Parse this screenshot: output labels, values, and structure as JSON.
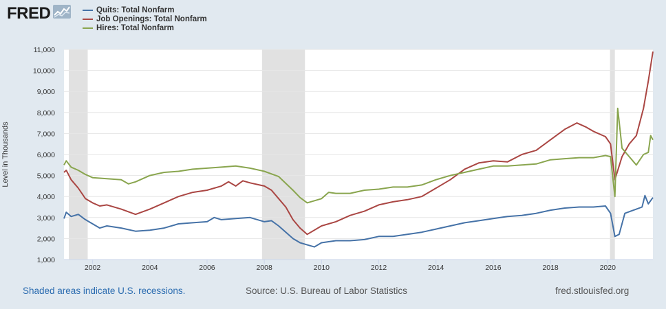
{
  "logo": {
    "text": "FRED"
  },
  "footer": {
    "recession_note": "Shaded areas indicate U.S. recessions.",
    "source": "Source: U.S. Bureau of Labor Statistics",
    "site": "fred.stlouisfed.org"
  },
  "chart_data": {
    "type": "line",
    "title": "",
    "xlabel": "",
    "ylabel": "Level in Thousands",
    "xlim": [
      2001.0,
      2021.58
    ],
    "ylim": [
      1000,
      11000
    ],
    "x_ticks": [
      2002,
      2004,
      2006,
      2008,
      2010,
      2012,
      2014,
      2016,
      2018,
      2020
    ],
    "y_ticks": [
      1000,
      2000,
      3000,
      4000,
      5000,
      6000,
      7000,
      8000,
      9000,
      10000,
      11000
    ],
    "y_tick_labels": [
      "1,000",
      "2,000",
      "3,000",
      "4,000",
      "5,000",
      "6,000",
      "7,000",
      "8,000",
      "9,000",
      "10,000",
      "11,000"
    ],
    "grid": true,
    "legend_position": "top-left",
    "recessions": [
      [
        2001.17,
        2001.83
      ],
      [
        2007.92,
        2009.42
      ],
      [
        2020.08,
        2020.25
      ]
    ],
    "series": [
      {
        "name": "Quits: Total Nonfarm",
        "color": "#4572a7",
        "points": [
          [
            2001.0,
            2950
          ],
          [
            2001.08,
            3250
          ],
          [
            2001.25,
            3050
          ],
          [
            2001.5,
            3150
          ],
          [
            2001.75,
            2900
          ],
          [
            2002.0,
            2700
          ],
          [
            2002.25,
            2500
          ],
          [
            2002.5,
            2600
          ],
          [
            2003.0,
            2500
          ],
          [
            2003.5,
            2350
          ],
          [
            2004.0,
            2400
          ],
          [
            2004.5,
            2500
          ],
          [
            2005.0,
            2700
          ],
          [
            2005.5,
            2750
          ],
          [
            2006.0,
            2800
          ],
          [
            2006.25,
            3000
          ],
          [
            2006.5,
            2900
          ],
          [
            2007.0,
            2950
          ],
          [
            2007.5,
            3000
          ],
          [
            2008.0,
            2800
          ],
          [
            2008.25,
            2850
          ],
          [
            2008.5,
            2600
          ],
          [
            2009.0,
            2000
          ],
          [
            2009.25,
            1800
          ],
          [
            2009.5,
            1700
          ],
          [
            2009.75,
            1600
          ],
          [
            2010.0,
            1800
          ],
          [
            2010.5,
            1900
          ],
          [
            2011.0,
            1900
          ],
          [
            2011.5,
            1950
          ],
          [
            2012.0,
            2100
          ],
          [
            2012.5,
            2100
          ],
          [
            2013.0,
            2200
          ],
          [
            2013.5,
            2300
          ],
          [
            2014.0,
            2450
          ],
          [
            2014.5,
            2600
          ],
          [
            2015.0,
            2750
          ],
          [
            2015.5,
            2850
          ],
          [
            2016.0,
            2950
          ],
          [
            2016.5,
            3050
          ],
          [
            2017.0,
            3100
          ],
          [
            2017.5,
            3200
          ],
          [
            2018.0,
            3350
          ],
          [
            2018.5,
            3450
          ],
          [
            2019.0,
            3500
          ],
          [
            2019.5,
            3500
          ],
          [
            2019.92,
            3550
          ],
          [
            2020.1,
            3200
          ],
          [
            2020.25,
            2100
          ],
          [
            2020.4,
            2200
          ],
          [
            2020.6,
            3200
          ],
          [
            2020.8,
            3300
          ],
          [
            2021.0,
            3400
          ],
          [
            2021.2,
            3500
          ],
          [
            2021.3,
            4050
          ],
          [
            2021.42,
            3650
          ],
          [
            2021.58,
            3950
          ]
        ]
      },
      {
        "name": "Job Openings: Total Nonfarm",
        "color": "#aa4643",
        "points": [
          [
            2001.0,
            5150
          ],
          [
            2001.08,
            5250
          ],
          [
            2001.25,
            4800
          ],
          [
            2001.5,
            4400
          ],
          [
            2001.75,
            3900
          ],
          [
            2002.0,
            3700
          ],
          [
            2002.25,
            3550
          ],
          [
            2002.5,
            3600
          ],
          [
            2003.0,
            3400
          ],
          [
            2003.5,
            3150
          ],
          [
            2004.0,
            3400
          ],
          [
            2004.5,
            3700
          ],
          [
            2005.0,
            4000
          ],
          [
            2005.5,
            4200
          ],
          [
            2006.0,
            4300
          ],
          [
            2006.5,
            4500
          ],
          [
            2006.75,
            4700
          ],
          [
            2007.0,
            4500
          ],
          [
            2007.25,
            4750
          ],
          [
            2007.5,
            4650
          ],
          [
            2008.0,
            4500
          ],
          [
            2008.25,
            4300
          ],
          [
            2008.5,
            3900
          ],
          [
            2008.75,
            3500
          ],
          [
            2009.0,
            2900
          ],
          [
            2009.25,
            2500
          ],
          [
            2009.5,
            2200
          ],
          [
            2010.0,
            2600
          ],
          [
            2010.5,
            2800
          ],
          [
            2011.0,
            3100
          ],
          [
            2011.5,
            3300
          ],
          [
            2012.0,
            3600
          ],
          [
            2012.5,
            3750
          ],
          [
            2013.0,
            3850
          ],
          [
            2013.5,
            4000
          ],
          [
            2014.0,
            4400
          ],
          [
            2014.5,
            4800
          ],
          [
            2015.0,
            5300
          ],
          [
            2015.5,
            5600
          ],
          [
            2016.0,
            5700
          ],
          [
            2016.5,
            5650
          ],
          [
            2017.0,
            6000
          ],
          [
            2017.5,
            6200
          ],
          [
            2018.0,
            6700
          ],
          [
            2018.5,
            7200
          ],
          [
            2018.92,
            7500
          ],
          [
            2019.25,
            7300
          ],
          [
            2019.5,
            7100
          ],
          [
            2019.92,
            6850
          ],
          [
            2020.1,
            6500
          ],
          [
            2020.25,
            4800
          ],
          [
            2020.5,
            5900
          ],
          [
            2020.75,
            6500
          ],
          [
            2021.0,
            6900
          ],
          [
            2021.25,
            8200
          ],
          [
            2021.42,
            9500
          ],
          [
            2021.58,
            10900
          ]
        ]
      },
      {
        "name": "Hires: Total Nonfarm",
        "color": "#89a54e",
        "points": [
          [
            2001.0,
            5500
          ],
          [
            2001.08,
            5700
          ],
          [
            2001.25,
            5400
          ],
          [
            2001.5,
            5250
          ],
          [
            2001.75,
            5050
          ],
          [
            2002.0,
            4900
          ],
          [
            2002.5,
            4850
          ],
          [
            2003.0,
            4800
          ],
          [
            2003.25,
            4600
          ],
          [
            2003.5,
            4700
          ],
          [
            2004.0,
            5000
          ],
          [
            2004.5,
            5150
          ],
          [
            2005.0,
            5200
          ],
          [
            2005.5,
            5300
          ],
          [
            2006.0,
            5350
          ],
          [
            2006.5,
            5400
          ],
          [
            2007.0,
            5450
          ],
          [
            2007.5,
            5350
          ],
          [
            2008.0,
            5200
          ],
          [
            2008.5,
            4950
          ],
          [
            2009.0,
            4300
          ],
          [
            2009.25,
            3950
          ],
          [
            2009.5,
            3700
          ],
          [
            2010.0,
            3900
          ],
          [
            2010.25,
            4200
          ],
          [
            2010.5,
            4150
          ],
          [
            2011.0,
            4150
          ],
          [
            2011.5,
            4300
          ],
          [
            2012.0,
            4350
          ],
          [
            2012.5,
            4450
          ],
          [
            2013.0,
            4450
          ],
          [
            2013.5,
            4550
          ],
          [
            2014.0,
            4800
          ],
          [
            2014.5,
            5000
          ],
          [
            2015.0,
            5150
          ],
          [
            2015.5,
            5300
          ],
          [
            2016.0,
            5450
          ],
          [
            2016.5,
            5450
          ],
          [
            2017.0,
            5500
          ],
          [
            2017.5,
            5550
          ],
          [
            2018.0,
            5750
          ],
          [
            2018.5,
            5800
          ],
          [
            2019.0,
            5850
          ],
          [
            2019.5,
            5850
          ],
          [
            2019.92,
            5950
          ],
          [
            2020.1,
            5900
          ],
          [
            2020.25,
            4000
          ],
          [
            2020.35,
            8200
          ],
          [
            2020.5,
            6300
          ],
          [
            2020.75,
            5900
          ],
          [
            2021.0,
            5500
          ],
          [
            2021.25,
            6000
          ],
          [
            2021.42,
            6100
          ],
          [
            2021.5,
            6900
          ],
          [
            2021.58,
            6700
          ]
        ]
      }
    ]
  }
}
